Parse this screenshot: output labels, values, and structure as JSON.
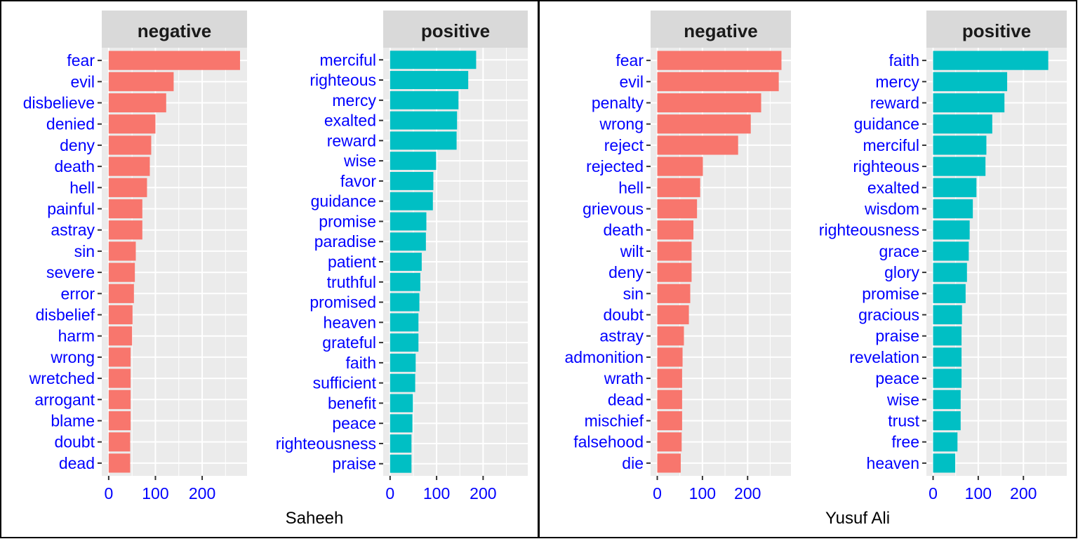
{
  "chart_data": [
    {
      "type": "bar",
      "orientation": "horizontal",
      "panel": "Saheeh",
      "facet": "negative",
      "color": "#F8766D",
      "xlim": [
        0,
        296
      ],
      "xticks": [
        0,
        100,
        200
      ],
      "categories": [
        "fear",
        "evil",
        "disbelieve",
        "denied",
        "deny",
        "death",
        "hell",
        "painful",
        "astray",
        "sin",
        "severe",
        "error",
        "disbelief",
        "harm",
        "wrong",
        "wretched",
        "arrogant",
        "blame",
        "doubt",
        "dead"
      ],
      "values": [
        281,
        139,
        123,
        100,
        91,
        88,
        82,
        72,
        72,
        58,
        56,
        54,
        51,
        50,
        47,
        47,
        47,
        47,
        46,
        46
      ]
    },
    {
      "type": "bar",
      "orientation": "horizontal",
      "panel": "Saheeh",
      "facet": "positive",
      "color": "#00BFC4",
      "xlim": [
        0,
        296
      ],
      "xticks": [
        0,
        100,
        200
      ],
      "categories": [
        "merciful",
        "righteous",
        "mercy",
        "exalted",
        "reward",
        "wise",
        "favor",
        "guidance",
        "promise",
        "paradise",
        "patient",
        "truthful",
        "promised",
        "heaven",
        "grateful",
        "faith",
        "sufficient",
        "benefit",
        "peace",
        "righteousness",
        "praise"
      ],
      "values": [
        185,
        168,
        147,
        144,
        143,
        99,
        93,
        92,
        78,
        77,
        68,
        65,
        63,
        61,
        61,
        55,
        54,
        49,
        48,
        46,
        46
      ]
    },
    {
      "type": "bar",
      "orientation": "horizontal",
      "panel": "Yusuf Ali",
      "facet": "negative",
      "color": "#F8766D",
      "xlim": [
        0,
        296
      ],
      "xticks": [
        0,
        100,
        200
      ],
      "categories": [
        "fear",
        "evil",
        "penalty",
        "wrong",
        "reject",
        "rejected",
        "hell",
        "grievous",
        "death",
        "wilt",
        "deny",
        "sin",
        "doubt",
        "astray",
        "admonition",
        "wrath",
        "dead",
        "mischief",
        "falsehood",
        "die"
      ],
      "values": [
        275,
        269,
        230,
        207,
        179,
        101,
        95,
        88,
        80,
        76,
        76,
        73,
        70,
        59,
        56,
        55,
        55,
        55,
        54,
        52
      ]
    },
    {
      "type": "bar",
      "orientation": "horizontal",
      "panel": "Yusuf Ali",
      "facet": "positive",
      "color": "#00BFC4",
      "xlim": [
        0,
        296
      ],
      "xticks": [
        0,
        100,
        200
      ],
      "categories": [
        "faith",
        "mercy",
        "reward",
        "guidance",
        "merciful",
        "righteous",
        "exalted",
        "wisdom",
        "righteousness",
        "grace",
        "glory",
        "promise",
        "gracious",
        "praise",
        "revelation",
        "peace",
        "wise",
        "trust",
        "free",
        "heaven"
      ],
      "values": [
        255,
        164,
        158,
        131,
        118,
        116,
        96,
        88,
        81,
        79,
        75,
        72,
        64,
        63,
        63,
        63,
        61,
        61,
        54,
        49
      ]
    }
  ],
  "panels": [
    {
      "xlabel": "Saheeh"
    },
    {
      "xlabel": "Yusuf Ali"
    }
  ],
  "colors": {
    "negative": "#F8766D",
    "positive": "#00BFC4",
    "label": "#0000FF",
    "panel_bg": "#EBEBEB",
    "strip_bg": "#D9D9D9"
  }
}
